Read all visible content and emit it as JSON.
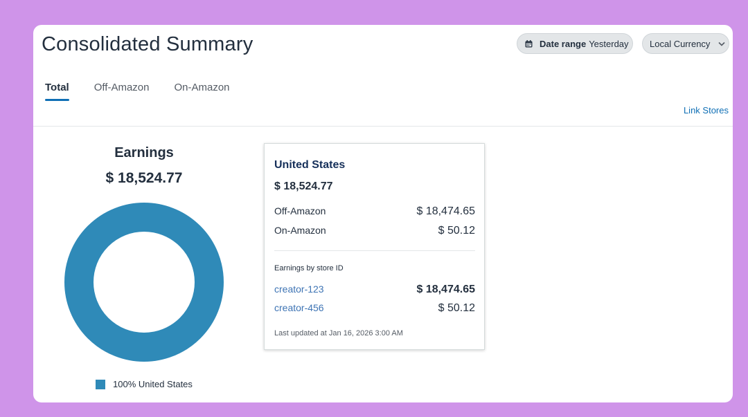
{
  "header": {
    "title": "Consolidated Summary",
    "date_range_label": "Date range",
    "date_range_value": "Yesterday",
    "currency_label": "Local Currency"
  },
  "tabs": [
    {
      "label": "Total",
      "active": true
    },
    {
      "label": "Off-Amazon",
      "active": false
    },
    {
      "label": "On-Amazon",
      "active": false
    }
  ],
  "link_stores": "Link Stores",
  "earnings": {
    "title": "Earnings",
    "value": "$ 18,524.77",
    "donut_color": "#2f8ab8",
    "share_percent": 100,
    "legend": "100% United States"
  },
  "card": {
    "region": "United States",
    "total": "$ 18,524.77",
    "off_amazon_label": "Off-Amazon",
    "off_amazon_value": "$ 18,474.65",
    "on_amazon_label": "On-Amazon",
    "on_amazon_value": "$ 50.12",
    "by_store_label": "Earnings by store ID",
    "stores": [
      {
        "id": "creator-123",
        "value": "$ 18,474.65"
      },
      {
        "id": "creator-456",
        "value": "$ 50.12"
      }
    ],
    "updated": "Last updated at Jan 16, 2026 3:00 AM"
  },
  "icons": {
    "calendar": "calendar-icon",
    "chevron": "chevron-down-icon"
  },
  "colors": {
    "background": "#cf94e9",
    "accent": "#0f6fb5",
    "donut": "#2f8ab8"
  }
}
